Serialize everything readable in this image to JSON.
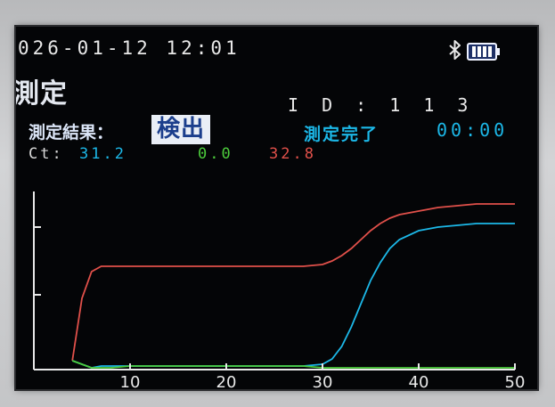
{
  "status_bar": {
    "datetime": "026-01-12  12:01",
    "bluetooth_icon": "bluetooth-icon",
    "battery_icon": "battery-icon"
  },
  "header": {
    "title": "測定",
    "id_label": "I D : 1 1 3"
  },
  "result": {
    "label": "測定結果：",
    "value": "検出",
    "status": "測定完了",
    "elapsed": "00:00"
  },
  "ct": {
    "label": "Ct:",
    "values": [
      "31.2",
      "0.0",
      "32.8"
    ],
    "colors": [
      "#1cb8e8",
      "#4ccc3c",
      "#e0504a"
    ]
  },
  "chart_data": {
    "type": "line",
    "x": [
      4,
      5,
      6,
      7,
      8,
      10,
      15,
      20,
      25,
      28,
      30,
      31,
      32,
      33,
      34,
      35,
      36,
      37,
      38,
      40,
      42,
      44,
      46,
      48,
      50
    ],
    "xlim": [
      0,
      50
    ],
    "xticks": [
      "10",
      "20",
      "30",
      "40",
      "50"
    ],
    "series": [
      {
        "color": "#e0504a",
        "values": [
          5,
          40,
          55,
          58,
          58,
          58,
          58,
          58,
          58,
          58,
          59,
          61,
          64,
          68,
          73,
          78,
          82,
          85,
          87,
          89,
          91,
          92,
          93,
          93,
          93
        ]
      },
      {
        "color": "#1cb8e8",
        "values": [
          5,
          3,
          1,
          2,
          2,
          2,
          2,
          2,
          2,
          2,
          3,
          6,
          13,
          24,
          37,
          50,
          60,
          68,
          73,
          78,
          80,
          81,
          82,
          82,
          82
        ]
      },
      {
        "color": "#4ccc3c",
        "values": [
          5,
          3,
          1,
          1,
          1,
          2,
          2,
          2,
          2,
          2,
          1,
          1,
          1,
          1,
          1,
          1,
          1,
          1,
          1,
          1,
          1,
          1,
          1,
          1,
          1
        ]
      }
    ]
  }
}
